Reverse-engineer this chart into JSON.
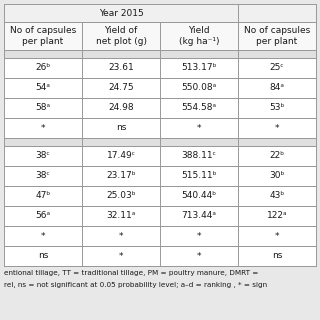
{
  "title": "Year 2015",
  "col_headers": [
    "No of capsules\nper plant",
    "Yield of\nnet plot (g)",
    "Yield\n(kg ha⁻¹)",
    "No of capsules\nper plant"
  ],
  "section1_rows": [
    [
      "26ᵇ",
      "23.61",
      "513.17ᵇ",
      "25ᶜ"
    ],
    [
      "54ᵃ",
      "24.75",
      "550.08ᵃ",
      "84ᵃ"
    ],
    [
      "58ᵃ",
      "24.98",
      "554.58ᵃ",
      "53ᵇ"
    ],
    [
      "*",
      "ns",
      "*",
      "*"
    ]
  ],
  "section2_rows": [
    [
      "38ᶜ",
      "17.49ᶜ",
      "388.11ᶜ",
      "22ᵇ"
    ],
    [
      "38ᶜ",
      "23.17ᵇ",
      "515.11ᵇ",
      "30ᵇ"
    ],
    [
      "47ᵇ",
      "25.03ᵇ",
      "540.44ᵇ",
      "43ᵇ"
    ],
    [
      "56ᵃ",
      "32.11ᵃ",
      "713.44ᵃ",
      "122ᵃ"
    ],
    [
      "*",
      "*",
      "*",
      "*"
    ],
    [
      "ns",
      "*",
      "*",
      "ns"
    ]
  ],
  "footer_lines": [
    "entional tillage, TT = traditional tillage, PM = poultry manure, DMRT =",
    "rel, ns = not significant at 0.05 probability level; a–d = ranking , * = sign"
  ],
  "bg_color": "#e8e8e8",
  "cell_bg": "#ffffff",
  "text_color": "#1a1a1a",
  "line_color": "#999999",
  "font_size": 6.5,
  "header_font_size": 6.5,
  "footer_font_size": 5.2
}
